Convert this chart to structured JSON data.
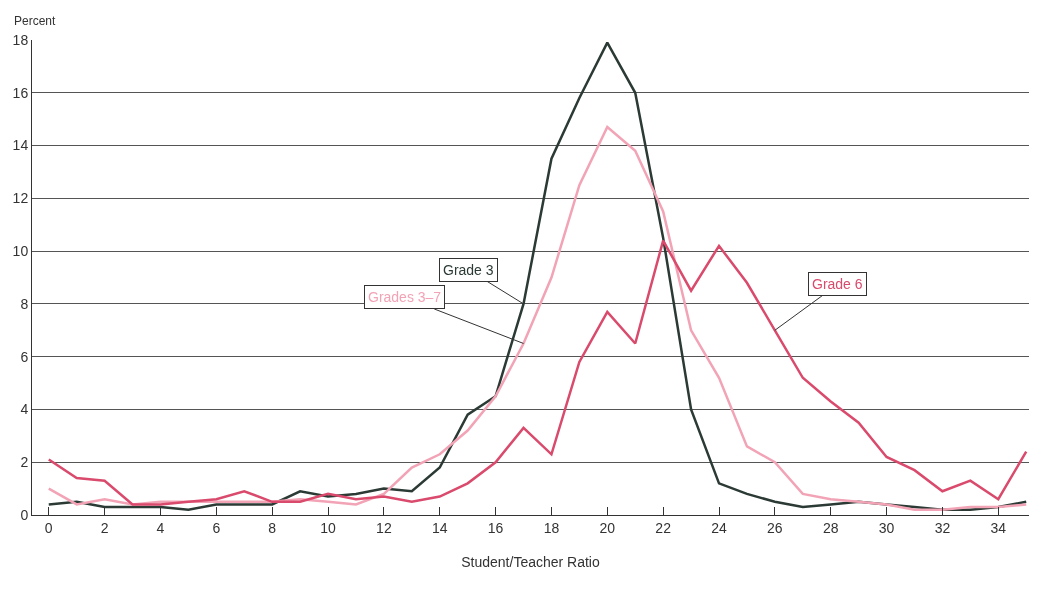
{
  "chart_data": {
    "type": "line",
    "ylabel": "Percent",
    "xlabel": "Student/Teacher Ratio",
    "x": [
      0,
      1,
      2,
      3,
      4,
      5,
      6,
      7,
      8,
      9,
      10,
      11,
      12,
      13,
      14,
      15,
      16,
      17,
      18,
      19,
      20,
      21,
      22,
      23,
      24,
      25,
      26,
      27,
      28,
      29,
      30,
      31,
      32,
      33,
      34,
      35
    ],
    "series": [
      {
        "name": "Grade 3",
        "color": "#2b3a35",
        "values": [
          0.4,
          0.5,
          0.3,
          0.3,
          0.3,
          0.2,
          0.4,
          0.4,
          0.4,
          0.9,
          0.7,
          0.8,
          1.0,
          0.9,
          1.8,
          3.8,
          4.5,
          8.0,
          13.5,
          15.8,
          17.9,
          16.0,
          10.5,
          4.0,
          1.2,
          0.8,
          0.5,
          0.3,
          0.4,
          0.5,
          0.4,
          0.3,
          0.2,
          0.2,
          0.3,
          0.5
        ]
      },
      {
        "name": "Grades 3–7",
        "color": "#f2a3b5",
        "values": [
          1.0,
          0.4,
          0.6,
          0.4,
          0.5,
          0.5,
          0.5,
          0.5,
          0.5,
          0.6,
          0.5,
          0.4,
          0.8,
          1.8,
          2.3,
          3.2,
          4.5,
          6.5,
          9.0,
          12.5,
          14.7,
          13.8,
          11.5,
          7.0,
          5.2,
          2.6,
          2.0,
          0.8,
          0.6,
          0.5,
          0.4,
          0.2,
          0.2,
          0.3,
          0.3,
          0.4
        ]
      },
      {
        "name": "Grade 6",
        "color": "#d94a6c",
        "values": [
          2.1,
          1.4,
          1.3,
          0.4,
          0.4,
          0.5,
          0.6,
          0.9,
          0.5,
          0.5,
          0.8,
          0.6,
          0.7,
          0.5,
          0.7,
          1.2,
          2.0,
          3.3,
          2.3,
          5.8,
          7.7,
          6.5,
          10.4,
          8.5,
          10.2,
          8.8,
          7.0,
          5.2,
          4.3,
          3.5,
          2.2,
          1.7,
          0.9,
          1.3,
          0.6,
          2.4
        ]
      }
    ],
    "xlim": [
      -0.6,
      35.1
    ],
    "xticks": [
      0,
      2,
      4,
      6,
      8,
      10,
      12,
      14,
      16,
      18,
      20,
      22,
      24,
      26,
      28,
      30,
      32,
      34
    ],
    "ylim": [
      0,
      18
    ],
    "yticks": [
      0,
      2,
      4,
      6,
      8,
      10,
      12,
      14,
      16,
      18
    ],
    "grid": "y",
    "legend": false,
    "marker": "none",
    "line_style": "solid"
  }
}
